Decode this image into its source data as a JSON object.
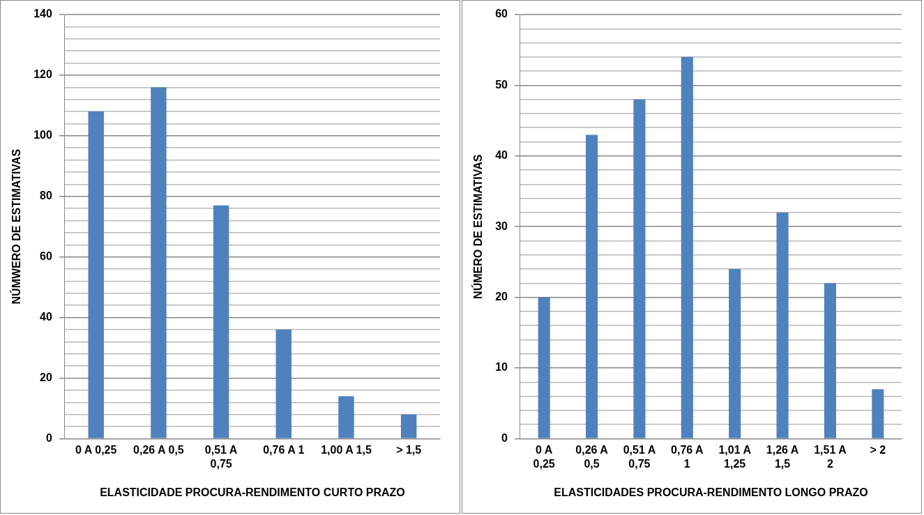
{
  "chart_data": [
    {
      "type": "bar",
      "xlabel": "ELASTICIDADE PROCURA-RENDIMENTO CURTO PRAZO",
      "ylabel": "NÚMWERO DE ESTIMATIVAS",
      "categories": [
        "0 A 0,25",
        "0,26 A 0,5",
        "0,51 A 0,75",
        "0,76 A 1",
        "1,00 A 1,5",
        "> 1,5"
      ],
      "values": [
        108,
        116,
        77,
        36,
        14,
        8
      ],
      "color": "#4f81bd",
      "ylim": [
        0,
        140
      ],
      "yticks": [
        0,
        {
          "value": 4,
          "label": null
        },
        {
          "value": 8,
          "label": null
        },
        {
          "value": 12,
          "label": null
        },
        {
          "value": 16,
          "label": null
        },
        20,
        {
          "value": 24,
          "label": null
        },
        {
          "value": 28,
          "label": null
        },
        {
          "value": 32,
          "label": null
        },
        {
          "value": 36,
          "label": null
        },
        40,
        {
          "value": 44,
          "label": null
        },
        {
          "value": 48,
          "label": null
        },
        {
          "value": 52,
          "label": null
        },
        {
          "value": 56,
          "label": null
        },
        60,
        {
          "value": 64,
          "label": null
        },
        {
          "value": 68,
          "label": null
        },
        {
          "value": 72,
          "label": null
        },
        {
          "value": 76,
          "label": null
        },
        80,
        {
          "value": 84,
          "label": null
        },
        {
          "value": 88,
          "label": null
        },
        {
          "value": 92,
          "label": null
        },
        {
          "value": 96,
          "label": null
        },
        100,
        {
          "value": 104,
          "label": null
        },
        {
          "value": 108,
          "label": null
        },
        {
          "value": 112,
          "label": null
        },
        {
          "value": 116,
          "label": null
        },
        120,
        {
          "value": 124,
          "label": null
        },
        {
          "value": 128,
          "label": null
        },
        {
          "value": 132,
          "label": null
        },
        {
          "value": 136,
          "label": null
        },
        140
      ],
      "grid": true
    },
    {
      "type": "bar",
      "xlabel": "ELASTICIDADES PROCURA-RENDIMENTO LONGO PRAZO",
      "ylabel": "NÚMERO DE ESTIMATIVAS",
      "categories": [
        "0 A 0,25",
        "0,26 A 0,5",
        "0,51 A 0,75",
        "0,76 A 1",
        "1,01 A 1,25",
        "1,26 A 1,5",
        "1,51 A 2",
        "> 2"
      ],
      "values": [
        20,
        43,
        48,
        54,
        24,
        32,
        22,
        7
      ],
      "color": "#4f81bd",
      "ylim": [
        0,
        60
      ],
      "yticks": [
        0,
        {
          "value": 2,
          "label": null
        },
        {
          "value": 4,
          "label": null
        },
        {
          "value": 6,
          "label": null
        },
        {
          "value": 8,
          "label": null
        },
        10,
        {
          "value": 12,
          "label": null
        },
        {
          "value": 14,
          "label": null
        },
        {
          "value": 16,
          "label": null
        },
        {
          "value": 18,
          "label": null
        },
        20,
        {
          "value": 22,
          "label": null
        },
        {
          "value": 24,
          "label": null
        },
        {
          "value": 26,
          "label": null
        },
        {
          "value": 28,
          "label": null
        },
        30,
        {
          "value": 32,
          "label": null
        },
        {
          "value": 34,
          "label": null
        },
        {
          "value": 36,
          "label": null
        },
        {
          "value": 38,
          "label": null
        },
        40,
        {
          "value": 42,
          "label": null
        },
        {
          "value": 44,
          "label": null
        },
        {
          "value": 46,
          "label": null
        },
        {
          "value": 48,
          "label": null
        },
        50,
        {
          "value": 52,
          "label": null
        },
        {
          "value": 54,
          "label": null
        },
        {
          "value": 56,
          "label": null
        },
        {
          "value": 58,
          "label": null
        },
        60
      ],
      "grid": true
    }
  ]
}
